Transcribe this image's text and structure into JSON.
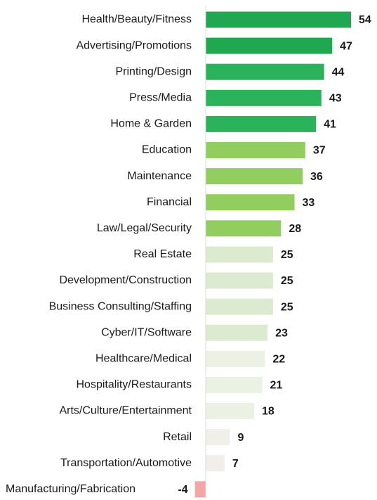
{
  "chart_data": {
    "type": "bar",
    "orientation": "horizontal",
    "title": "",
    "xlabel": "",
    "ylabel": "",
    "legend": "none",
    "grid": false,
    "categories": [
      "Health/Beauty/Fitness",
      "Advertising/Promotions",
      "Printing/Design",
      "Press/Media",
      "Home & Garden",
      "Education",
      "Maintenance",
      "Financial",
      "Law/Legal/Security",
      "Real Estate",
      "Development/Construction",
      "Business Consulting/Staffing",
      "Cyber/IT/Software",
      "Healthcare/Medical",
      "Hospitality/Restaurants",
      "Arts/Culture/Entertainment",
      "Retail",
      "Transportation/Automotive",
      "Manufacturing/Fabrication"
    ],
    "values": [
      54,
      47,
      44,
      43,
      41,
      37,
      36,
      33,
      28,
      25,
      25,
      25,
      23,
      22,
      21,
      18,
      9,
      7,
      -4
    ],
    "value_labels": [
      "54",
      "47",
      "44",
      "43",
      "41",
      "37",
      "36",
      "33",
      "28",
      "25",
      "25",
      "25",
      "23",
      "22",
      "21",
      "18",
      "9",
      "7",
      "-4"
    ],
    "bar_colors": [
      "#1fa84f",
      "#1fa84f",
      "#2ab35a",
      "#2ab35a",
      "#2ab35a",
      "#92cd60",
      "#92cd60",
      "#92cd60",
      "#92cd60",
      "#dcebd0",
      "#dcebd0",
      "#dcebd0",
      "#dcebd0",
      "#ebf2e3",
      "#ebf2e3",
      "#ebf2e3",
      "#f0efe9",
      "#f0efe9",
      "#f4a6a6"
    ],
    "axis_line_color": "#d9d9d9"
  }
}
